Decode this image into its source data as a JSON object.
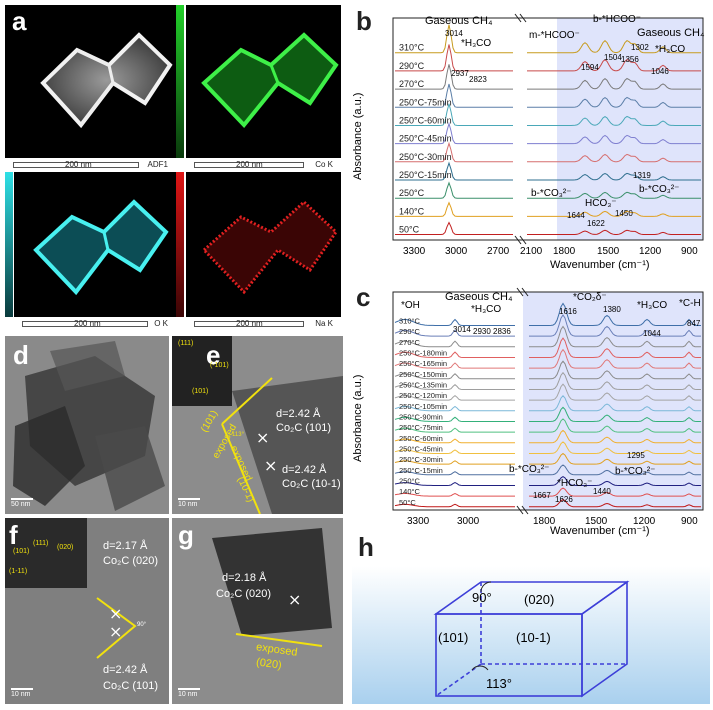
{
  "panels": {
    "a": "a",
    "b": "b",
    "c": "c",
    "d": "d",
    "e": "e",
    "f": "f",
    "g": "g",
    "h": "h"
  },
  "maps": {
    "scale_text": "200 nm",
    "adf_label": "ADF1",
    "co_label": "Co K",
    "o_label": "O K",
    "na_label": "Na K",
    "colors": {
      "adf": "#ffffff",
      "co": "#22d12a",
      "o": "#2ee0e6",
      "na": "#e01515"
    }
  },
  "tem_d": {
    "scale": "50 nm"
  },
  "tem_e": {
    "fft": [
      "(111)",
      "(-101)",
      "(101)"
    ],
    "d1": "d=2.42 Å",
    "p1": "Co₂C (101)",
    "d2": "d=2.42 Å",
    "p2": "Co₂C (10-1)",
    "face1": "(101)",
    "exposed1": "exposed",
    "exposed2": "exposed",
    "face2": "(10-1)",
    "angle": "113°",
    "scale": "10 nm"
  },
  "tem_f": {
    "fft": [
      "(101)",
      "(111)",
      "(020)",
      "(1-11)"
    ],
    "d1": "d=2.17 Å",
    "p1": "Co₂C (020)",
    "d2": "d=2.42 Å",
    "p2": "Co₂C (101)",
    "angle": "90°",
    "scale": "10 nm"
  },
  "tem_g": {
    "d1": "d=2.18 Å",
    "p1": "Co₂C (020)",
    "exposed": "exposed",
    "face": "(020)",
    "scale": "10 nm"
  },
  "panel_b": {
    "ylabel": "Absorbance (a.u.)",
    "xlabel": "Wavenumber (cm⁻¹)",
    "ticks_left": [
      "3300",
      "3000",
      "2700",
      "2100"
    ],
    "ticks_right": [
      "1800",
      "1500",
      "1200",
      "900"
    ],
    "series": [
      "310°C",
      "290°C",
      "270°C",
      "250°C-75min",
      "250°C-60min",
      "250°C-45min",
      "250°C-30min",
      "250°C-15min",
      "250°C",
      "140°C",
      "50°C"
    ],
    "annotations": {
      "gas_ch4": "Gaseous CH₄",
      "p3014": "3014",
      "h3co": "*H₃CO",
      "p2937": "2937",
      "p2823": "2823",
      "m_hcoo": "m-*HCOO⁻",
      "b_hcoo": "b-*HCOO⁻",
      "gas_ch4_2": "Gaseous CH₄",
      "p1594": "1594",
      "p1504": "1504",
      "p1356": "1356",
      "p1302": "1302",
      "h3co_2": "*H₃CO",
      "p1046": "1046",
      "b_co3": "b-*CO₃²⁻",
      "hco3": "HCO₃⁻",
      "b_co3_2": "b-*CO₃²⁻",
      "p1644": "1644",
      "p1622": "1622",
      "p1450": "1450",
      "p1319": "1319"
    }
  },
  "panel_c": {
    "ylabel": "Absorbance (a.u.)",
    "xlabel": "Wavenumber (cm⁻¹)",
    "ticks_left": [
      "3300",
      "3000"
    ],
    "ticks_right": [
      "1800",
      "1500",
      "1200",
      "900"
    ],
    "series": [
      "310°C",
      "290°C",
      "270°C",
      "250°C-180min",
      "250°C-165min",
      "250°C-150min",
      "250°C-135min",
      "250°C-120min",
      "250°C-105min",
      "250°C-90min",
      "250°C-75min",
      "250°C-60min",
      "250°C-45min",
      "250°C-30min",
      "250°C-15min",
      "250°C",
      "140°C",
      "50°C"
    ],
    "annotations": {
      "oh": "*OH",
      "gas_ch4": "Gaseous CH₄",
      "h3co": "*H₃CO",
      "p3014": "3014",
      "p2930": "2930",
      "p2836": "2836",
      "co2": "*CO₂δ⁻",
      "p1616": "1616",
      "p1380": "1380",
      "h3co_2": "*H₃CO",
      "p1044": "1044",
      "ch": "*C-H",
      "p847": "847",
      "b_co3": "b-*CO₃²⁻",
      "hco3": "*HCO₃⁻",
      "b_co3_2": "b-*CO₃²⁻",
      "p1295": "1295",
      "p1667": "1667",
      "p1626": "1626",
      "p1440": "1440"
    }
  },
  "panel_h": {
    "angle_top": "90°",
    "face_top": "(020)",
    "face_left": "(101)",
    "face_front": "(10-1)",
    "angle_bottom": "113°"
  },
  "colors": {
    "b_palette": [
      "#c79b1f",
      "#c84a4a",
      "#7b7b7b",
      "#5c7fa8",
      "#4aa8b8",
      "#7f7fd0",
      "#d66f6f",
      "#2f6f8f",
      "#3a8f6a",
      "#e0a020",
      "#c22020"
    ],
    "c_palette": [
      "#3f6fa8",
      "#6a7fb8",
      "#8c8c8c",
      "#e06060",
      "#e07878",
      "#8a8a8a",
      "#9e9e9e",
      "#a4a4a4",
      "#7cb8d8",
      "#34b07a",
      "#50c080",
      "#f0b030",
      "#f0c040",
      "#e0a020",
      "#5070a0",
      "#202080",
      "#e05050",
      "#c01818"
    ]
  }
}
